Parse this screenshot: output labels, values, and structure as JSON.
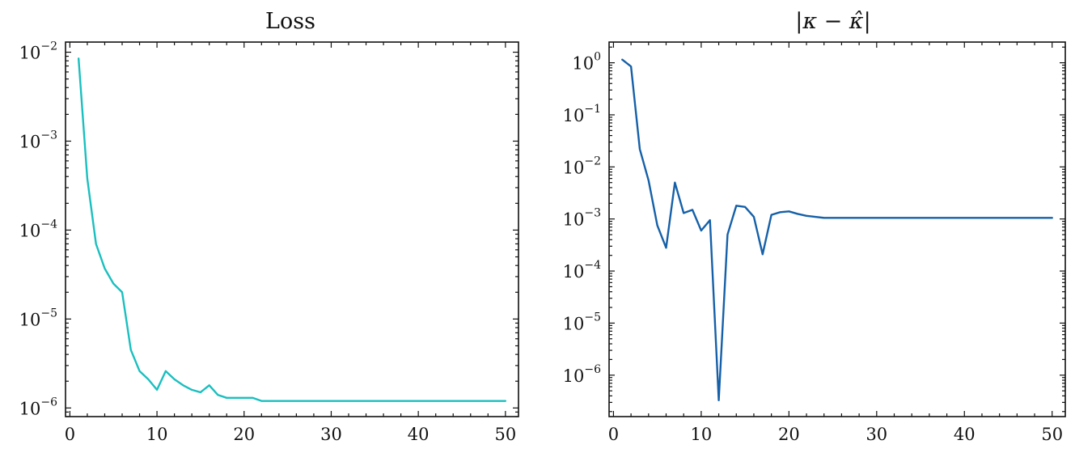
{
  "chart_data": [
    {
      "type": "line",
      "title": "Loss",
      "xlabel": "",
      "ylabel": "",
      "yscale": "log",
      "xlim": [
        -0.5,
        51.5
      ],
      "ylim": [
        8e-07,
        0.013
      ],
      "grid": false,
      "color": "#1abfbf",
      "x_ticks": [
        {
          "value": 0,
          "label": "0"
        },
        {
          "value": 10,
          "label": "10"
        },
        {
          "value": 20,
          "label": "20"
        },
        {
          "value": 30,
          "label": "30"
        },
        {
          "value": 40,
          "label": "40"
        },
        {
          "value": 50,
          "label": "50"
        }
      ],
      "y_ticks": [
        {
          "value": 1e-06,
          "base": "10",
          "exp": "−6"
        },
        {
          "value": 1e-05,
          "base": "10",
          "exp": "−5"
        },
        {
          "value": 0.0001,
          "base": "10",
          "exp": "−4"
        },
        {
          "value": 0.001,
          "base": "10",
          "exp": "−3"
        },
        {
          "value": 0.01,
          "base": "10",
          "exp": "−2"
        }
      ],
      "series": [
        {
          "x": [
            1,
            2,
            3,
            4,
            5,
            6,
            7,
            8,
            9,
            10,
            11,
            12,
            13,
            14,
            15,
            16,
            17,
            18,
            19,
            20,
            21,
            22,
            23,
            24,
            25,
            26,
            27,
            28,
            29,
            30,
            31,
            32,
            33,
            34,
            35,
            36,
            37,
            38,
            39,
            40,
            41,
            42,
            43,
            44,
            45,
            46,
            47,
            48,
            49,
            50
          ],
          "y": [
            0.0085,
            0.00038,
            7e-05,
            3.7e-05,
            2.5e-05,
            2e-05,
            4.5e-06,
            2.6e-06,
            2.1e-06,
            1.6e-06,
            2.6e-06,
            2.1e-06,
            1.8e-06,
            1.6e-06,
            1.5e-06,
            1.8e-06,
            1.4e-06,
            1.3e-06,
            1.3e-06,
            1.3e-06,
            1.3e-06,
            1.2e-06,
            1.2e-06,
            1.2e-06,
            1.2e-06,
            1.2e-06,
            1.2e-06,
            1.2e-06,
            1.2e-06,
            1.2e-06,
            1.2e-06,
            1.2e-06,
            1.2e-06,
            1.2e-06,
            1.2e-06,
            1.2e-06,
            1.2e-06,
            1.2e-06,
            1.2e-06,
            1.2e-06,
            1.2e-06,
            1.2e-06,
            1.2e-06,
            1.2e-06,
            1.2e-06,
            1.2e-06,
            1.2e-06,
            1.2e-06,
            1.2e-06,
            1.2e-06
          ]
        }
      ]
    },
    {
      "type": "line",
      "title": "|κ − κ̂|",
      "xlabel": "",
      "ylabel": "",
      "yscale": "log",
      "xlim": [
        -0.5,
        51.5
      ],
      "ylim": [
        1.6e-07,
        2.5
      ],
      "grid": false,
      "color": "#1560a8",
      "x_ticks": [
        {
          "value": 0,
          "label": "0"
        },
        {
          "value": 10,
          "label": "10"
        },
        {
          "value": 20,
          "label": "20"
        },
        {
          "value": 30,
          "label": "30"
        },
        {
          "value": 40,
          "label": "40"
        },
        {
          "value": 50,
          "label": "50"
        }
      ],
      "y_ticks": [
        {
          "value": 1e-06,
          "base": "10",
          "exp": "−6"
        },
        {
          "value": 1e-05,
          "base": "10",
          "exp": "−5"
        },
        {
          "value": 0.0001,
          "base": "10",
          "exp": "−4"
        },
        {
          "value": 0.001,
          "base": "10",
          "exp": "−3"
        },
        {
          "value": 0.01,
          "base": "10",
          "exp": "−2"
        },
        {
          "value": 0.1,
          "base": "10",
          "exp": "−1"
        },
        {
          "value": 1,
          "base": "10",
          "exp": "0"
        }
      ],
      "series": [
        {
          "x": [
            1,
            2,
            3,
            4,
            5,
            6,
            7,
            8,
            9,
            10,
            11,
            12,
            13,
            14,
            15,
            16,
            17,
            18,
            19,
            20,
            21,
            22,
            23,
            24,
            25,
            26,
            27,
            28,
            29,
            30,
            31,
            32,
            33,
            34,
            35,
            36,
            37,
            38,
            39,
            40,
            41,
            42,
            43,
            44,
            45,
            46,
            47,
            48,
            49,
            50
          ],
          "y": [
            1.15,
            0.85,
            0.022,
            0.0055,
            0.00075,
            0.00028,
            0.005,
            0.0013,
            0.0015,
            0.0006,
            0.00095,
            3.3e-07,
            0.0005,
            0.0018,
            0.0017,
            0.0011,
            0.00021,
            0.0012,
            0.00135,
            0.0014,
            0.00125,
            0.00115,
            0.0011,
            0.00105,
            0.00105,
            0.00105,
            0.00105,
            0.00105,
            0.00105,
            0.00105,
            0.00105,
            0.00105,
            0.00105,
            0.00105,
            0.00105,
            0.00105,
            0.00105,
            0.00105,
            0.00105,
            0.00105,
            0.00105,
            0.00105,
            0.00105,
            0.00105,
            0.00105,
            0.00105,
            0.00105,
            0.00105,
            0.00105,
            0.00105
          ]
        }
      ]
    }
  ]
}
